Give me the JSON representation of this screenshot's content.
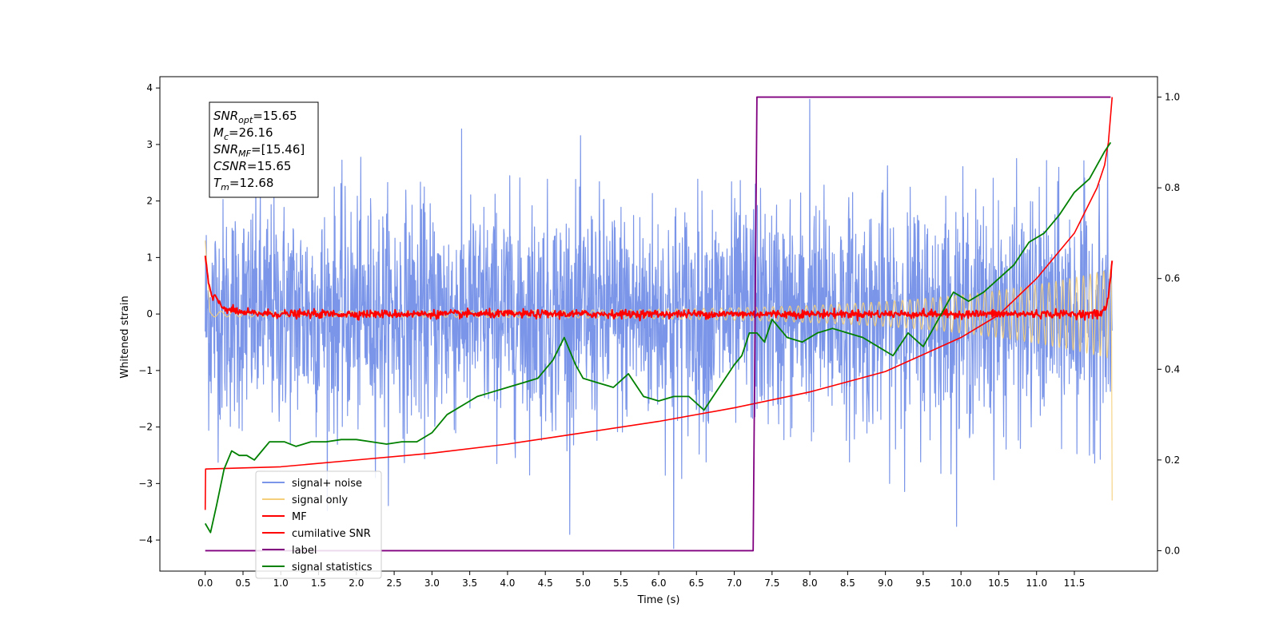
{
  "chart_data": {
    "type": "line",
    "xlabel": "Time (s)",
    "ylabel": "Whitened strain",
    "xlim": [
      -0.6,
      12.6
    ],
    "ylim": [
      -4.55,
      4.2
    ],
    "y2lim": [
      -0.045,
      1.045
    ],
    "xticks": [
      "0.0",
      "0.5",
      "1.0",
      "1.5",
      "2.0",
      "2.5",
      "3.0",
      "3.5",
      "4.0",
      "4.5",
      "5.0",
      "5.5",
      "6.0",
      "6.5",
      "7.0",
      "7.5",
      "8.0",
      "8.5",
      "9.0",
      "9.5",
      "10.0",
      "10.5",
      "11.0",
      "11.5"
    ],
    "xtick_values": [
      0,
      0.5,
      1,
      1.5,
      2,
      2.5,
      3,
      3.5,
      4,
      4.5,
      5,
      5.5,
      6,
      6.5,
      7,
      7.5,
      8,
      8.5,
      9,
      9.5,
      10,
      10.5,
      11,
      11.5
    ],
    "yticks": [
      "4",
      "3",
      "2",
      "1",
      "0",
      "−1",
      "−2",
      "−3",
      "−4"
    ],
    "ytick_values": [
      4,
      3,
      2,
      1,
      0,
      -1,
      -2,
      -3,
      -4
    ],
    "y2ticks": [
      "1.0",
      "0.8",
      "0.6",
      "0.4",
      "0.2",
      "0.0"
    ],
    "y2tick_values": [
      1.0,
      0.8,
      0.6,
      0.4,
      0.2,
      0.0
    ],
    "series": [
      {
        "name": "signal+ noise",
        "axis": "left",
        "color": "#7b96e8",
        "style": "gaussian noise, std ~1.0, over t=0..12"
      },
      {
        "name": "signal only",
        "axis": "left",
        "color": "#f5cf7a",
        "style": "chirp, amplitude rising from ~0.05 to ~0.7, final spike to -3.3 at t=12"
      },
      {
        "name": "MF",
        "axis": "left",
        "color": "#ff0000",
        "x": [
          0.0,
          0.02,
          0.05,
          0.1,
          0.15,
          0.2,
          0.3,
          0.5,
          1.0,
          11.85,
          11.93,
          11.97,
          12.0
        ],
        "y": [
          1.0,
          0.8,
          0.5,
          0.25,
          0.3,
          0.15,
          0.08,
          0.02,
          0.0,
          0.0,
          0.15,
          0.5,
          0.95
        ]
      },
      {
        "name": "cumilative SNR",
        "axis": "right",
        "color": "#ff0000",
        "x": [
          0.0,
          0.005,
          1,
          2,
          3,
          4,
          5,
          6,
          7,
          8,
          9,
          10,
          10.5,
          11,
          11.5,
          11.8,
          11.9,
          11.95,
          12.0
        ],
        "y": [
          0.09,
          0.18,
          0.185,
          0.2,
          0.215,
          0.235,
          0.26,
          0.285,
          0.315,
          0.35,
          0.395,
          0.47,
          0.52,
          0.6,
          0.7,
          0.8,
          0.85,
          0.9,
          1.0
        ]
      },
      {
        "name": "label",
        "axis": "right",
        "color": "#800080",
        "x": [
          0.0,
          7.25,
          7.3,
          11.98
        ],
        "y": [
          0.0,
          0.0,
          1.0,
          1.0
        ]
      },
      {
        "name": "signal statistics",
        "axis": "right",
        "color": "#008000",
        "x": [
          0.0,
          0.07,
          0.15,
          0.25,
          0.35,
          0.45,
          0.55,
          0.65,
          0.75,
          0.85,
          0.95,
          1.05,
          1.2,
          1.4,
          1.6,
          1.8,
          2.0,
          2.2,
          2.4,
          2.6,
          2.8,
          3.0,
          3.2,
          3.4,
          3.6,
          3.8,
          4.0,
          4.2,
          4.4,
          4.6,
          4.75,
          4.9,
          5.0,
          5.2,
          5.4,
          5.6,
          5.8,
          6.0,
          6.2,
          6.4,
          6.6,
          6.8,
          7.0,
          7.1,
          7.2,
          7.3,
          7.4,
          7.5,
          7.7,
          7.9,
          8.1,
          8.3,
          8.5,
          8.7,
          8.9,
          9.1,
          9.3,
          9.5,
          9.7,
          9.9,
          10.1,
          10.3,
          10.5,
          10.7,
          10.9,
          11.1,
          11.3,
          11.5,
          11.7,
          11.9,
          11.98
        ],
        "y": [
          0.06,
          0.04,
          0.1,
          0.18,
          0.22,
          0.21,
          0.21,
          0.2,
          0.22,
          0.24,
          0.24,
          0.24,
          0.23,
          0.24,
          0.24,
          0.245,
          0.245,
          0.24,
          0.235,
          0.24,
          0.24,
          0.26,
          0.3,
          0.32,
          0.34,
          0.35,
          0.36,
          0.37,
          0.38,
          0.42,
          0.47,
          0.41,
          0.38,
          0.37,
          0.36,
          0.39,
          0.34,
          0.33,
          0.34,
          0.34,
          0.31,
          0.36,
          0.41,
          0.43,
          0.48,
          0.48,
          0.46,
          0.51,
          0.47,
          0.46,
          0.48,
          0.49,
          0.48,
          0.47,
          0.45,
          0.43,
          0.48,
          0.45,
          0.51,
          0.57,
          0.55,
          0.57,
          0.6,
          0.63,
          0.68,
          0.7,
          0.74,
          0.79,
          0.82,
          0.88,
          0.9
        ]
      }
    ],
    "info_box": [
      {
        "main": "SNR",
        "sub": "opt",
        "value": "=15.65"
      },
      {
        "main": "M",
        "sub": "c",
        "value": "=26.16"
      },
      {
        "main": "SNR",
        "sub": "MF",
        "value": "=[15.46]"
      },
      {
        "main": "CSNR",
        "sub": "",
        "value": "=15.65"
      },
      {
        "main": "T",
        "sub": "m",
        "value": "=12.68"
      }
    ],
    "legend": {
      "placement": "lower-left",
      "entries": [
        "signal+ noise",
        "signal only",
        "MF",
        "cumilative SNR",
        "label",
        "signal statistics"
      ]
    }
  }
}
